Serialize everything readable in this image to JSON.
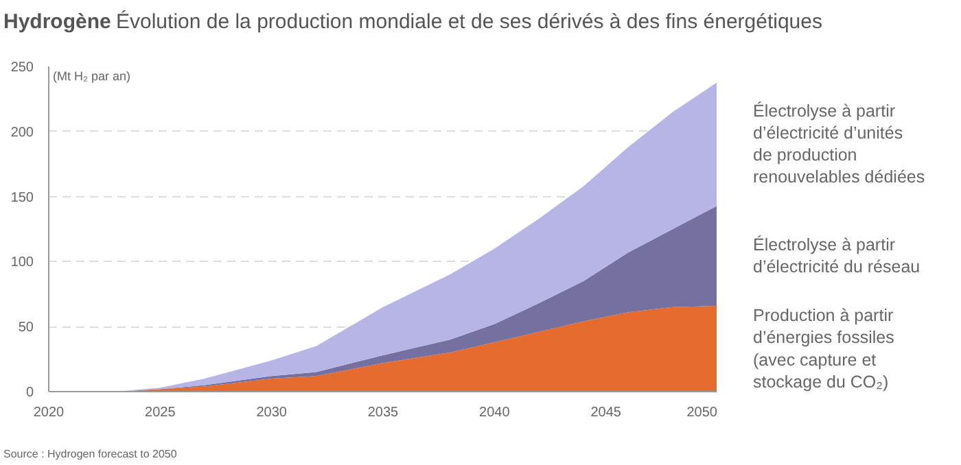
{
  "chart_data": {
    "type": "area",
    "stacked": true,
    "title": "Hydrogène",
    "subtitle": "Évolution de la production mondiale et de ses dérivés à des fins énergétiques",
    "ylabel": "(Mt H₂ par an)",
    "annotations": [
      "Source : Hydrogen forecast to 2050"
    ],
    "x": [
      2020,
      2023,
      2025,
      2027,
      2030,
      2032,
      2035,
      2038,
      2040,
      2042,
      2044,
      2046,
      2048,
      2050
    ],
    "series": [
      {
        "name": "Production à partir d’énergies fossiles (avec capture et stockage du CO₂)",
        "color": "#e56b2e",
        "values": [
          0,
          0,
          2,
          4,
          10,
          12,
          22,
          30,
          38,
          46,
          54,
          61,
          65,
          66
        ]
      },
      {
        "name": "Électrolyse à partir d’électricité du réseau",
        "color": "#74709f",
        "values": [
          0,
          0,
          0,
          1,
          2,
          3,
          6,
          10,
          14,
          22,
          31,
          46,
          60,
          77
        ]
      },
      {
        "name": "Électrolyse à partir d’électricité d’unités de production renouvelables dédiées",
        "color": "#b7b5e6",
        "values": [
          0,
          0,
          1,
          5,
          12,
          20,
          37,
          50,
          58,
          65,
          73,
          81,
          90,
          95
        ]
      }
    ],
    "xlim": [
      2020,
      2050
    ],
    "ylim": [
      0,
      250
    ],
    "xticks": [
      2020,
      2025,
      2030,
      2035,
      2040,
      2045,
      2050
    ],
    "yticks": [
      0,
      50,
      100,
      150,
      200,
      250
    ],
    "grid": "y"
  }
}
